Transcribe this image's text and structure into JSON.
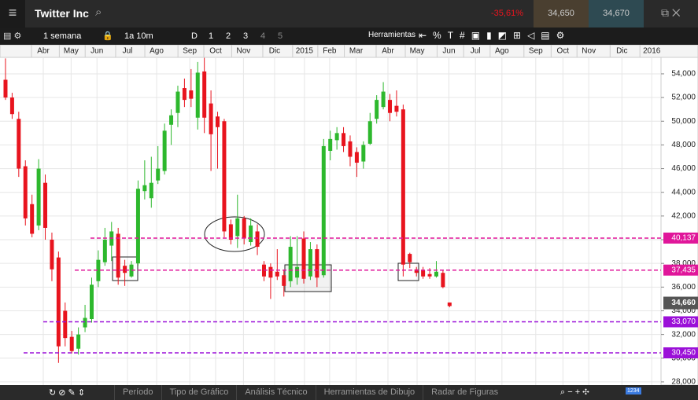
{
  "header": {
    "title": "Twitter Inc",
    "change": "-35,61%",
    "sell": "34,650",
    "buy": "34,670"
  },
  "toolbar": {
    "period": "1 semana",
    "range": "1a 10m",
    "d": "D",
    "levels": [
      "1",
      "2",
      "3",
      "4",
      "5"
    ],
    "tools": "Herramientas"
  },
  "bottom": {
    "tabs": [
      "Período",
      "Tipo de Gráfico",
      "Análisis Técnico",
      "Herramientas de Dibujo",
      "Radar de Figuras"
    ],
    "badge": "1234"
  },
  "chart_data": {
    "type": "candlestick",
    "x": [
      0,
      1,
      2,
      3,
      4,
      5,
      6,
      7,
      8,
      9,
      10,
      11,
      12,
      13,
      14,
      15,
      16,
      17,
      18,
      19,
      20,
      21,
      22,
      23,
      24,
      25,
      26,
      27,
      28,
      29,
      30,
      31,
      32,
      33,
      34,
      35,
      36,
      37,
      38,
      39,
      40,
      41,
      42,
      43,
      44,
      45,
      46,
      47,
      48,
      49,
      50,
      51,
      52,
      53,
      54,
      55,
      56,
      57,
      58,
      59,
      60,
      61,
      62,
      63,
      64,
      65,
      66,
      67
    ],
    "open": [
      53500,
      52000,
      50200,
      46200,
      43000,
      41200,
      44800,
      40000,
      38500,
      34000,
      31800,
      30800,
      32600,
      33300,
      36500,
      38100,
      39500,
      40500,
      37800,
      36900,
      38000,
      44100,
      43500,
      45000,
      45800,
      49700,
      50700,
      52800,
      52600,
      50300,
      54200,
      51500,
      50400,
      50000,
      41300,
      40300,
      41800,
      39800,
      40700,
      37900,
      37700,
      37300,
      37000,
      36500,
      36800,
      40100,
      36900,
      39200,
      37000,
      47500,
      48400,
      49000,
      48300,
      47400,
      46600,
      48100,
      50200,
      51200,
      51800,
      51300,
      51000,
      38800,
      37500,
      37400,
      37100,
      36900,
      37200,
      34700
    ],
    "high": [
      55300,
      52400,
      50800,
      46700,
      43800,
      46800,
      45500,
      40600,
      39000,
      34700,
      32300,
      32600,
      34500,
      36800,
      39100,
      41000,
      41500,
      41000,
      38300,
      38200,
      45000,
      46700,
      47000,
      47900,
      49800,
      51000,
      53000,
      53600,
      54400,
      55000,
      55350,
      52600,
      50800,
      50200,
      41700,
      43800,
      42000,
      41800,
      41300,
      38200,
      38000,
      39200,
      37400,
      40300,
      40300,
      40700,
      39800,
      39600,
      48500,
      49200,
      49500,
      49500,
      48800,
      47800,
      48300,
      50700,
      52200,
      53300,
      52300,
      52600,
      51400,
      38900,
      37700,
      37700,
      37600,
      38200,
      37400,
      34700
    ],
    "low": [
      51800,
      50200,
      45300,
      41200,
      40200,
      40800,
      40000,
      36500,
      29600,
      31000,
      30400,
      30300,
      32200,
      33000,
      36000,
      37800,
      38200,
      36200,
      36100,
      36800,
      37800,
      43400,
      42700,
      44700,
      45500,
      48000,
      49500,
      51200,
      51200,
      49300,
      49000,
      45800,
      46000,
      40200,
      39600,
      39300,
      39600,
      39500,
      38700,
      36500,
      35000,
      36600,
      35200,
      36000,
      36200,
      36300,
      36600,
      36000,
      36800,
      46700,
      47600,
      47400,
      46200,
      45300,
      46000,
      48000,
      49800,
      51000,
      50000,
      50400,
      36900,
      37600,
      36900,
      36700,
      36700,
      36800,
      35900,
      34300
    ],
    "close": [
      52000,
      50600,
      46000,
      41800,
      40500,
      46000,
      41000,
      37500,
      31000,
      31700,
      30600,
      32000,
      33400,
      36200,
      38300,
      40000,
      40700,
      36800,
      37200,
      37900,
      44300,
      44600,
      44800,
      46000,
      49200,
      50500,
      52500,
      51800,
      51900,
      54100,
      50300,
      48900,
      49500,
      40700,
      40000,
      41800,
      40100,
      41200,
      39400,
      36900,
      36800,
      36900,
      36100,
      39400,
      37700,
      36700,
      39200,
      36800,
      47900,
      48500,
      49000,
      47900,
      47000,
      46500,
      48000,
      50000,
      51800,
      52500,
      50700,
      50800,
      37900,
      38100,
      37200,
      36900,
      36900,
      37300,
      36000,
      34400
    ],
    "up_color": "#2db82d",
    "down_color": "#e8141e",
    "xlim": [
      -0.83,
      98.9
    ],
    "xticks": [
      {
        "value": 5.7,
        "label": "Abr"
      },
      {
        "value": 9.9,
        "label": "May"
      },
      {
        "value": 13.8,
        "label": "Jun"
      },
      {
        "value": 18.4,
        "label": "Jul"
      },
      {
        "value": 22.8,
        "label": "Ago"
      },
      {
        "value": 27.8,
        "label": "Sep"
      },
      {
        "value": 31.7,
        "label": "Oct"
      },
      {
        "value": 35.9,
        "label": "Nov"
      },
      {
        "value": 40.6,
        "label": "Dic"
      },
      {
        "value": 45.1,
        "label": "2015"
      },
      {
        "value": 48.9,
        "label": "Feb"
      },
      {
        "value": 52.9,
        "label": "Mar"
      },
      {
        "value": 57.7,
        "label": "Abr"
      },
      {
        "value": 62.1,
        "label": "May"
      },
      {
        "value": 66.9,
        "label": "Jun"
      },
      {
        "value": 70.9,
        "label": "Jul"
      },
      {
        "value": 74.9,
        "label": "Ago"
      },
      {
        "value": 80,
        "label": "Sep"
      },
      {
        "value": 84.1,
        "label": "Oct"
      },
      {
        "value": 88,
        "label": "Nov"
      },
      {
        "value": 93,
        "label": "Dic"
      },
      {
        "value": 97.5,
        "label": "2016"
      }
    ],
    "ylim": [
      27730,
      55390
    ],
    "yticks": [
      {
        "value": 28000,
        "label": "28,000"
      },
      {
        "value": 30000,
        "label": "30,000"
      },
      {
        "value": 32000,
        "label": "32,000"
      },
      {
        "value": 34000,
        "label": "34,000"
      },
      {
        "value": 36000,
        "label": "36,000"
      },
      {
        "value": 38000,
        "label": "38,000"
      },
      {
        "value": 40000,
        "label": "40,000"
      },
      {
        "value": 42000,
        "label": "42,000"
      },
      {
        "value": 44000,
        "label": "44,000"
      },
      {
        "value": 46000,
        "label": "46,000"
      },
      {
        "value": 48000,
        "label": "48,000"
      },
      {
        "value": 50000,
        "label": "50,000"
      },
      {
        "value": 52000,
        "label": "52,000"
      },
      {
        "value": 54000,
        "label": "54,000"
      }
    ],
    "grid": true,
    "hlines": [
      {
        "value": 40137,
        "label": "40,137",
        "color": "#e0169a"
      },
      {
        "value": 37435,
        "label": "37,435",
        "color": "#e0169a"
      },
      {
        "value": 33070,
        "label": "33,070",
        "color": "#9b10d8"
      },
      {
        "value": 30450,
        "label": "30,450",
        "color": "#9b10d8"
      }
    ],
    "last": {
      "value": 34660,
      "label": "34,660"
    }
  }
}
